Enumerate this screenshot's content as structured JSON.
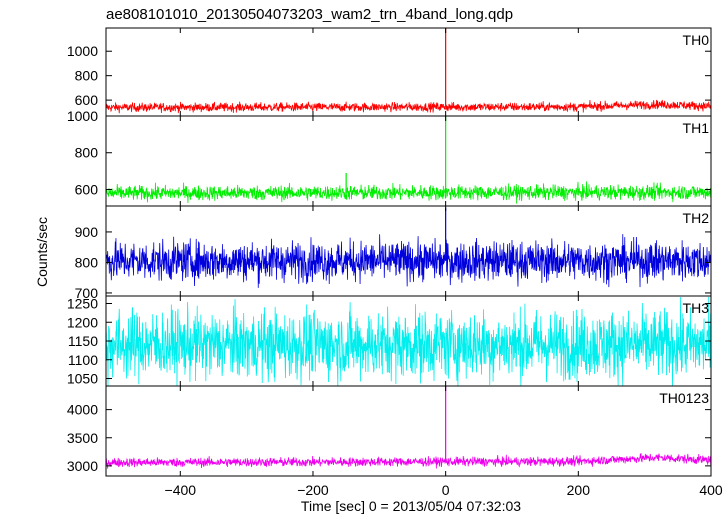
{
  "chart_data": {
    "type": "line",
    "title": "ae808101010_20130504073203_wam2_trn_4band_long.qdp",
    "xlabel": "Time [sec] 0 = 2013/05/04 07:32:03",
    "ylabel": "Counts/sec",
    "xlim": [
      -512,
      400
    ],
    "x_ticks": [
      -400,
      -200,
      0,
      200,
      400
    ],
    "x_tick_labels": [
      "−400",
      "−200",
      "0",
      "200",
      "400"
    ],
    "grid": false,
    "panels": [
      {
        "name": "TH0",
        "color": "#ff0000",
        "ylim": [
          470,
          1190
        ],
        "y_ticks": [
          600,
          800,
          1000
        ],
        "y_tick_labels": [
          "600",
          "800",
          "1000"
        ],
        "baseline": 540,
        "noise": 18,
        "spikes": [
          {
            "x": 0,
            "y": 1190
          }
        ],
        "drift": [
          {
            "x": -512,
            "y": 0
          },
          {
            "x": 200,
            "y": 5
          },
          {
            "x": 320,
            "y": 25
          },
          {
            "x": 400,
            "y": 10
          }
        ]
      },
      {
        "name": "TH1",
        "color": "#00ee00",
        "ylim": [
          510,
          1000
        ],
        "y_ticks": [
          600,
          800,
          1000
        ],
        "y_tick_labels": [
          "600",
          "800",
          "1000"
        ],
        "baseline": 580,
        "noise": 20,
        "spikes": [
          {
            "x": 0,
            "y": 1000
          },
          {
            "x": -150,
            "y": 690
          }
        ],
        "drift": [
          {
            "x": -512,
            "y": 0
          },
          {
            "x": 400,
            "y": 5
          }
        ]
      },
      {
        "name": "TH2",
        "color": "#0000dd",
        "ylim": [
          690,
          985
        ],
        "y_ticks": [
          700,
          800,
          900
        ],
        "y_tick_labels": [
          "700",
          "800",
          "900"
        ],
        "baseline": 805,
        "noise": 32,
        "spikes": [
          {
            "x": 0,
            "y": 980
          }
        ],
        "drift": [
          {
            "x": -512,
            "y": 0
          },
          {
            "x": 400,
            "y": 0
          }
        ]
      },
      {
        "name": "TH3",
        "color": "#00eeee",
        "ylim": [
          1030,
          1270
        ],
        "y_ticks": [
          1050,
          1100,
          1150,
          1200,
          1250
        ],
        "y_tick_labels": [
          "1050",
          "1100",
          "1150",
          "1200",
          "1250"
        ],
        "baseline": 1140,
        "noise": 45,
        "spikes": [],
        "drift": [
          {
            "x": -512,
            "y": 0
          },
          {
            "x": 400,
            "y": 0
          }
        ]
      },
      {
        "name": "TH0123",
        "color": "#ee00ee",
        "ylim": [
          2820,
          4420
        ],
        "y_ticks": [
          3000,
          3500,
          4000
        ],
        "y_tick_labels": [
          "3000",
          "3500",
          "4000"
        ],
        "baseline": 3060,
        "noise": 40,
        "spikes": [
          {
            "x": 0,
            "y": 4420
          }
        ],
        "drift": [
          {
            "x": -512,
            "y": 0
          },
          {
            "x": 200,
            "y": 20
          },
          {
            "x": 320,
            "y": 90
          },
          {
            "x": 400,
            "y": 40
          }
        ]
      }
    ]
  }
}
